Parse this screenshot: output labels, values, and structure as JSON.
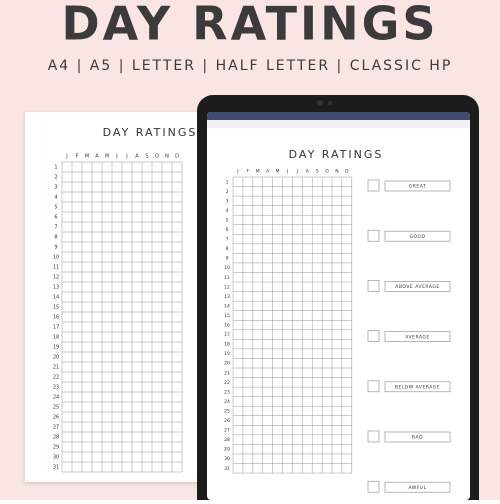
{
  "header": {
    "title": "DAY RATINGS",
    "formats": "A4 | A5 | LETTER | HALF LETTER | CLASSIC HP"
  },
  "planner": {
    "title": "DAY RATINGS",
    "months": [
      "J",
      "F",
      "M",
      "A",
      "M",
      "J",
      "J",
      "A",
      "S",
      "O",
      "N",
      "D"
    ],
    "days": [
      1,
      2,
      3,
      4,
      5,
      6,
      7,
      8,
      9,
      10,
      11,
      12,
      13,
      14,
      15,
      16,
      17,
      18,
      19,
      20,
      21,
      22,
      23,
      24,
      25,
      26,
      27,
      28,
      29,
      30,
      31
    ],
    "ratings": [
      "GREAT",
      "GOOD",
      "ABOVE AVERAGE",
      "AVERAGE",
      "BELOW AVERAGE",
      "BAD",
      "AWFUL"
    ]
  }
}
